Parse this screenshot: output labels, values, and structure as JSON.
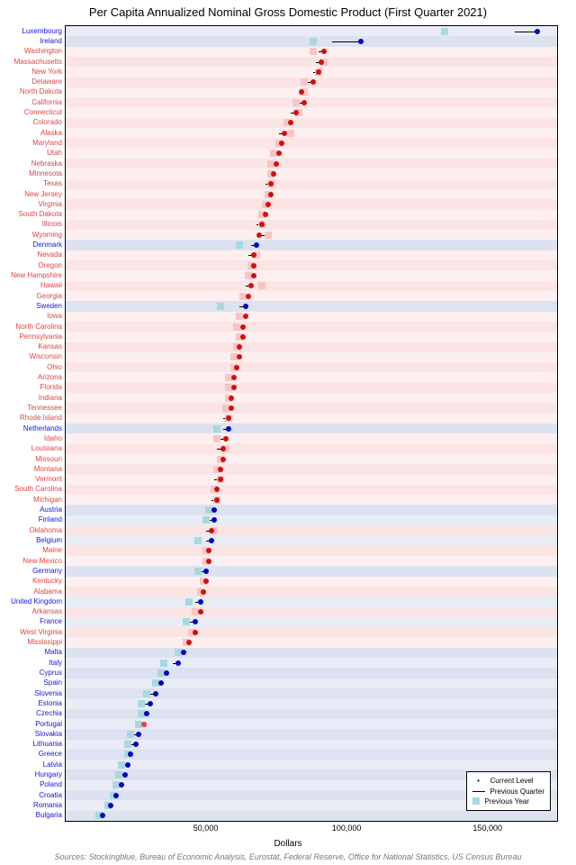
{
  "title": "Per Capita Annualized Nominal Gross Domestic Product (First Quarter 2021)",
  "sources": "Sources: Stockingblue, Bureau of Economic Analysis, Eurostat, Federal Reserve, Office for National Statistics, US Census Bureau",
  "xAxis": {
    "label": "Dollars",
    "min": 0,
    "max": 175000,
    "ticks": [
      50000,
      100000,
      150000
    ],
    "tickLabels": [
      "50,000",
      "100,000",
      "150,000"
    ]
  },
  "legend": {
    "current": "Current Level",
    "prevQ": "Previous Quarter",
    "prevY": "Previous Year"
  },
  "colors": {
    "us": "#e54040",
    "eu": "#1414e5",
    "usRow": "#fdefef",
    "usRowAlt": "#fbe4e4",
    "euRow": "#e8ecf5",
    "euRowAlt": "#dce2f0",
    "dot_us": "#d01010",
    "dot_eu": "#0404c0",
    "prevY_us": "#fac4c4",
    "prevY_eu": "#a8d8e0",
    "grid": "#bbbbbb"
  },
  "rows": [
    {
      "name": "Luxembourg",
      "type": "eu",
      "current": 168000,
      "prevQ": 160000,
      "prevY": 135000
    },
    {
      "name": "Ireland",
      "type": "eu",
      "current": 105000,
      "prevQ": 95000,
      "prevY": 88000
    },
    {
      "name": "Washington",
      "type": "us",
      "current": 92000,
      "prevQ": 90000,
      "prevY": 88000
    },
    {
      "name": "Massachusetts",
      "type": "us",
      "current": 91000,
      "prevQ": 89000,
      "prevY": 92000
    },
    {
      "name": "New York",
      "type": "us",
      "current": 90000,
      "prevQ": 88000,
      "prevY": 90000
    },
    {
      "name": "Delaware",
      "type": "us",
      "current": 88000,
      "prevQ": 86000,
      "prevY": 85000
    },
    {
      "name": "North Dakota",
      "type": "us",
      "current": 84000,
      "prevQ": 86000,
      "prevY": 85000
    },
    {
      "name": "California",
      "type": "us",
      "current": 85000,
      "prevQ": 83000,
      "prevY": 82000
    },
    {
      "name": "Connecticut",
      "type": "us",
      "current": 82000,
      "prevQ": 80000,
      "prevY": 83000
    },
    {
      "name": "Colorado",
      "type": "us",
      "current": 80000,
      "prevQ": 78000,
      "prevY": 79000
    },
    {
      "name": "Alaska",
      "type": "us",
      "current": 78000,
      "prevQ": 76000,
      "prevY": 80000
    },
    {
      "name": "Maryland",
      "type": "us",
      "current": 77000,
      "prevQ": 75000,
      "prevY": 76000
    },
    {
      "name": "Utah",
      "type": "us",
      "current": 76000,
      "prevQ": 74000,
      "prevY": 74000
    },
    {
      "name": "Nebraska",
      "type": "us",
      "current": 75000,
      "prevQ": 73000,
      "prevY": 73000
    },
    {
      "name": "Minnesota",
      "type": "us",
      "current": 74000,
      "prevQ": 72000,
      "prevY": 73000
    },
    {
      "name": "Texas",
      "type": "us",
      "current": 73000,
      "prevQ": 71000,
      "prevY": 73000
    },
    {
      "name": "New Jersey",
      "type": "us",
      "current": 73000,
      "prevQ": 71000,
      "prevY": 72000
    },
    {
      "name": "Virginia",
      "type": "us",
      "current": 72000,
      "prevQ": 70000,
      "prevY": 71000
    },
    {
      "name": "South Dakota",
      "type": "us",
      "current": 71000,
      "prevQ": 69000,
      "prevY": 70000
    },
    {
      "name": "Illinois",
      "type": "us",
      "current": 70000,
      "prevQ": 68000,
      "prevY": 70000
    },
    {
      "name": "Wyoming",
      "type": "us",
      "current": 69000,
      "prevQ": 71000,
      "prevY": 72000
    },
    {
      "name": "Denmark",
      "type": "eu",
      "current": 68000,
      "prevQ": 66000,
      "prevY": 62000
    },
    {
      "name": "Nevada",
      "type": "us",
      "current": 67000,
      "prevQ": 65000,
      "prevY": 68000
    },
    {
      "name": "Oregon",
      "type": "us",
      "current": 67000,
      "prevQ": 65000,
      "prevY": 66000
    },
    {
      "name": "New Hampshire",
      "type": "us",
      "current": 67000,
      "prevQ": 65000,
      "prevY": 65000
    },
    {
      "name": "Hawaii",
      "type": "us",
      "current": 66000,
      "prevQ": 64000,
      "prevY": 70000
    },
    {
      "name": "Georgia",
      "type": "us",
      "current": 65000,
      "prevQ": 63000,
      "prevY": 63000
    },
    {
      "name": "Sweden",
      "type": "eu",
      "current": 64000,
      "prevQ": 62000,
      "prevY": 55000
    },
    {
      "name": "Iowa",
      "type": "us",
      "current": 64000,
      "prevQ": 62000,
      "prevY": 62000
    },
    {
      "name": "North Carolina",
      "type": "us",
      "current": 63000,
      "prevQ": 61000,
      "prevY": 61000
    },
    {
      "name": "Pennsylvania",
      "type": "us",
      "current": 63000,
      "prevQ": 61000,
      "prevY": 62000
    },
    {
      "name": "Kansas",
      "type": "us",
      "current": 62000,
      "prevQ": 60000,
      "prevY": 61000
    },
    {
      "name": "Wisconsin",
      "type": "us",
      "current": 62000,
      "prevQ": 60000,
      "prevY": 60000
    },
    {
      "name": "Ohio",
      "type": "us",
      "current": 61000,
      "prevQ": 59000,
      "prevY": 60000
    },
    {
      "name": "Arizona",
      "type": "us",
      "current": 60000,
      "prevQ": 58000,
      "prevY": 58000
    },
    {
      "name": "Florida",
      "type": "us",
      "current": 60000,
      "prevQ": 58000,
      "prevY": 58000
    },
    {
      "name": "Indiana",
      "type": "us",
      "current": 59000,
      "prevQ": 57000,
      "prevY": 58000
    },
    {
      "name": "Tennessee",
      "type": "us",
      "current": 59000,
      "prevQ": 57000,
      "prevY": 57000
    },
    {
      "name": "Rhode Island",
      "type": "us",
      "current": 58000,
      "prevQ": 56000,
      "prevY": 58000
    },
    {
      "name": "Netherlands",
      "type": "eu",
      "current": 58000,
      "prevQ": 56000,
      "prevY": 54000
    },
    {
      "name": "Idaho",
      "type": "us",
      "current": 57000,
      "prevQ": 55000,
      "prevY": 54000
    },
    {
      "name": "Louisiana",
      "type": "us",
      "current": 56000,
      "prevQ": 54000,
      "prevY": 57000
    },
    {
      "name": "Missouri",
      "type": "us",
      "current": 56000,
      "prevQ": 54000,
      "prevY": 55000
    },
    {
      "name": "Montana",
      "type": "us",
      "current": 55000,
      "prevQ": 53000,
      "prevY": 54000
    },
    {
      "name": "Vermont",
      "type": "us",
      "current": 55000,
      "prevQ": 53000,
      "prevY": 55000
    },
    {
      "name": "South Carolina",
      "type": "us",
      "current": 54000,
      "prevQ": 52000,
      "prevY": 53000
    },
    {
      "name": "Michigan",
      "type": "us",
      "current": 54000,
      "prevQ": 52000,
      "prevY": 54000
    },
    {
      "name": "Austria",
      "type": "eu",
      "current": 53000,
      "prevQ": 51000,
      "prevY": 51000
    },
    {
      "name": "Finland",
      "type": "eu",
      "current": 53000,
      "prevQ": 51000,
      "prevY": 50000
    },
    {
      "name": "Oklahoma",
      "type": "us",
      "current": 52000,
      "prevQ": 50000,
      "prevY": 53000
    },
    {
      "name": "Belgium",
      "type": "eu",
      "current": 52000,
      "prevQ": 50000,
      "prevY": 47000
    },
    {
      "name": "Maine",
      "type": "us",
      "current": 51000,
      "prevQ": 49000,
      "prevY": 50000
    },
    {
      "name": "New Mexico",
      "type": "us",
      "current": 51000,
      "prevQ": 49000,
      "prevY": 50000
    },
    {
      "name": "Germany",
      "type": "eu",
      "current": 50000,
      "prevQ": 48000,
      "prevY": 47000
    },
    {
      "name": "Kentucky",
      "type": "us",
      "current": 50000,
      "prevQ": 48000,
      "prevY": 49000
    },
    {
      "name": "Alabama",
      "type": "us",
      "current": 49000,
      "prevQ": 47000,
      "prevY": 48000
    },
    {
      "name": "United Kingdom",
      "type": "eu",
      "current": 48000,
      "prevQ": 46000,
      "prevY": 44000
    },
    {
      "name": "Arkansas",
      "type": "us",
      "current": 48000,
      "prevQ": 46000,
      "prevY": 46000
    },
    {
      "name": "France",
      "type": "eu",
      "current": 46000,
      "prevQ": 44000,
      "prevY": 43000
    },
    {
      "name": "West Virginia",
      "type": "us",
      "current": 46000,
      "prevQ": 44000,
      "prevY": 45000
    },
    {
      "name": "Mississippi",
      "type": "us",
      "current": 44000,
      "prevQ": 42000,
      "prevY": 43000
    },
    {
      "name": "Malta",
      "type": "eu",
      "current": 42000,
      "prevQ": 40000,
      "prevY": 40000
    },
    {
      "name": "Italy",
      "type": "eu",
      "current": 40000,
      "prevQ": 38000,
      "prevY": 35000
    },
    {
      "name": "Cyprus",
      "type": "eu",
      "current": 36000,
      "prevQ": 34000,
      "prevY": 34000
    },
    {
      "name": "Spain",
      "type": "eu",
      "current": 34000,
      "prevQ": 32000,
      "prevY": 32000
    },
    {
      "name": "Slovenia",
      "type": "eu",
      "current": 32000,
      "prevQ": 30000,
      "prevY": 29000
    },
    {
      "name": "Estonia",
      "type": "eu",
      "current": 30000,
      "prevQ": 28000,
      "prevY": 27000
    },
    {
      "name": "Czechia",
      "type": "eu",
      "current": 29000,
      "prevQ": 27000,
      "prevY": 27000
    },
    {
      "name": "Portugal",
      "type": "eu",
      "current": 28000,
      "prevQ": 26000,
      "prevY": 26000,
      "dotColor": "#e54040"
    },
    {
      "name": "Slovakia",
      "type": "eu",
      "current": 26000,
      "prevQ": 24000,
      "prevY": 23000
    },
    {
      "name": "Lithuania",
      "type": "eu",
      "current": 25000,
      "prevQ": 23000,
      "prevY": 22000
    },
    {
      "name": "Greece",
      "type": "eu",
      "current": 23000,
      "prevQ": 21000,
      "prevY": 22000
    },
    {
      "name": "Latvia",
      "type": "eu",
      "current": 22000,
      "prevQ": 20000,
      "prevY": 20000
    },
    {
      "name": "Hungary",
      "type": "eu",
      "current": 21000,
      "prevQ": 19000,
      "prevY": 19000
    },
    {
      "name": "Poland",
      "type": "eu",
      "current": 20000,
      "prevQ": 18000,
      "prevY": 18000
    },
    {
      "name": "Croatia",
      "type": "eu",
      "current": 18000,
      "prevQ": 16000,
      "prevY": 17000
    },
    {
      "name": "Romania",
      "type": "eu",
      "current": 16000,
      "prevQ": 14000,
      "prevY": 15000
    },
    {
      "name": "Bulgaria",
      "type": "eu",
      "current": 13000,
      "prevQ": 11000,
      "prevY": 12000
    }
  ]
}
